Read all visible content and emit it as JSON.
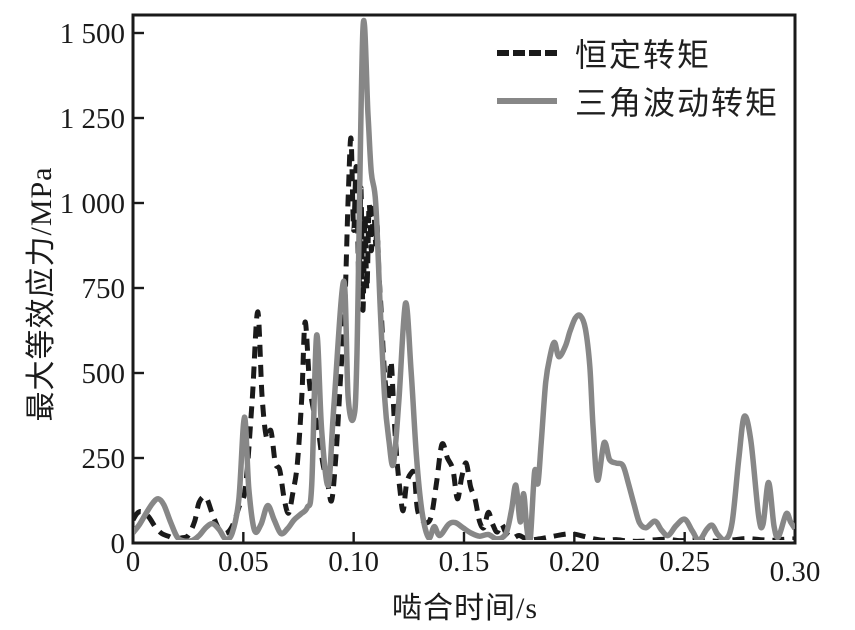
{
  "figure": {
    "background": "#ffffff",
    "frame_color": "#1a1a1a"
  },
  "axes": {
    "x_title": "啮合时间/s",
    "y_title": "最大等效应力/MPa"
  },
  "legend": {
    "items": [
      {
        "sample": "dashed-black-line",
        "label": "恒定转矩"
      },
      {
        "sample": "solid-gray-line",
        "label": "三角波动转矩"
      }
    ]
  },
  "chart_data": {
    "type": "line",
    "title": "",
    "xlabel": "啮合时间/s",
    "ylabel": "最大等效应力/MPa",
    "xlim": [
      0,
      0.3
    ],
    "ylim": [
      0,
      1500
    ],
    "grid": false,
    "legend_position": "top-right-inside",
    "x_ticks": {
      "values": [
        0,
        0.05,
        0.1,
        0.15,
        0.2,
        0.25,
        0.3
      ],
      "labels": [
        "0",
        "0.05",
        "0.10",
        "0.15",
        "0.20",
        "0.25",
        "0.30"
      ]
    },
    "y_ticks": {
      "values": [
        0,
        250,
        500,
        750,
        1000,
        1250,
        1500
      ],
      "labels": [
        "0",
        "250",
        "500",
        "750",
        "1 000",
        "1 250",
        "1 500"
      ]
    },
    "series": [
      {
        "name": "恒定转矩",
        "line_style": "dashed",
        "color": "#1a1a1a",
        "points": [
          [
            0,
            68
          ],
          [
            0.002,
            88
          ],
          [
            0.004,
            92
          ],
          [
            0.007,
            78
          ],
          [
            0.01,
            48
          ],
          [
            0.013,
            28
          ],
          [
            0.016,
            20
          ],
          [
            0.019,
            12
          ],
          [
            0.022,
            15
          ],
          [
            0.025,
            22
          ],
          [
            0.028,
            65
          ],
          [
            0.03,
            120
          ],
          [
            0.033,
            135
          ],
          [
            0.036,
            85
          ],
          [
            0.039,
            40
          ],
          [
            0.042,
            28
          ],
          [
            0.045,
            50
          ],
          [
            0.048,
            105
          ],
          [
            0.051,
            165
          ],
          [
            0.054,
            420
          ],
          [
            0.0565,
            680
          ],
          [
            0.0585,
            430
          ],
          [
            0.0605,
            310
          ],
          [
            0.0625,
            330
          ],
          [
            0.0645,
            235
          ],
          [
            0.0665,
            215
          ],
          [
            0.0685,
            130
          ],
          [
            0.0705,
            88
          ],
          [
            0.0725,
            150
          ],
          [
            0.0745,
            235
          ],
          [
            0.0765,
            430
          ],
          [
            0.078,
            650
          ],
          [
            0.08,
            470
          ],
          [
            0.082,
            385
          ],
          [
            0.084,
            330
          ],
          [
            0.086,
            235
          ],
          [
            0.088,
            185
          ],
          [
            0.09,
            125
          ],
          [
            0.092,
            260
          ],
          [
            0.094,
            480
          ],
          [
            0.096,
            700
          ],
          [
            0.0975,
            1010
          ],
          [
            0.0988,
            1190
          ],
          [
            0.1,
            920
          ],
          [
            0.1012,
            1105
          ],
          [
            0.1024,
            760
          ],
          [
            0.1033,
            1045
          ],
          [
            0.1042,
            685
          ],
          [
            0.1051,
            965
          ],
          [
            0.106,
            745
          ],
          [
            0.107,
            995
          ],
          [
            0.108,
            860
          ],
          [
            0.109,
            985
          ],
          [
            0.11,
            880
          ],
          [
            0.1106,
            935
          ],
          [
            0.1115,
            790
          ],
          [
            0.1124,
            690
          ],
          [
            0.1133,
            575
          ],
          [
            0.1142,
            480
          ],
          [
            0.1156,
            425
          ],
          [
            0.1169,
            535
          ],
          [
            0.1183,
            375
          ],
          [
            0.1196,
            245
          ],
          [
            0.121,
            155
          ],
          [
            0.1224,
            95
          ],
          [
            0.124,
            175
          ],
          [
            0.126,
            205
          ],
          [
            0.1275,
            200
          ],
          [
            0.129,
            95
          ],
          [
            0.132,
            62
          ],
          [
            0.135,
            75
          ],
          [
            0.1375,
            175
          ],
          [
            0.14,
            290
          ],
          [
            0.1425,
            250
          ],
          [
            0.145,
            215
          ],
          [
            0.147,
            130
          ],
          [
            0.149,
            195
          ],
          [
            0.151,
            235
          ],
          [
            0.153,
            165
          ],
          [
            0.155,
            130
          ],
          [
            0.157,
            65
          ],
          [
            0.159,
            45
          ],
          [
            0.161,
            90
          ],
          [
            0.163,
            55
          ],
          [
            0.165,
            32
          ],
          [
            0.167,
            55
          ],
          [
            0.169,
            30
          ],
          [
            0.172,
            15
          ],
          [
            0.175,
            22
          ],
          [
            0.179,
            10
          ],
          [
            0.184,
            12
          ],
          [
            0.189,
            18
          ],
          [
            0.194,
            24
          ],
          [
            0.199,
            27
          ],
          [
            0.204,
            20
          ],
          [
            0.209,
            12
          ],
          [
            0.214,
            8
          ],
          [
            0.219,
            10
          ],
          [
            0.224,
            6
          ],
          [
            0.23,
            5
          ],
          [
            0.236,
            9
          ],
          [
            0.242,
            11
          ],
          [
            0.248,
            7
          ],
          [
            0.254,
            9
          ],
          [
            0.26,
            7
          ],
          [
            0.266,
            5
          ],
          [
            0.272,
            9
          ],
          [
            0.278,
            13
          ],
          [
            0.284,
            10
          ],
          [
            0.29,
            8
          ],
          [
            0.295,
            11
          ],
          [
            0.3,
            12
          ]
        ]
      },
      {
        "name": "三角波动转矩",
        "line_style": "solid",
        "color": "#878787",
        "points": [
          [
            0,
            30
          ],
          [
            0.003,
            55
          ],
          [
            0.006,
            88
          ],
          [
            0.009,
            118
          ],
          [
            0.0115,
            130
          ],
          [
            0.014,
            112
          ],
          [
            0.017,
            62
          ],
          [
            0.02,
            18
          ],
          [
            0.023,
            6
          ],
          [
            0.027,
            8
          ],
          [
            0.03,
            22
          ],
          [
            0.033,
            45
          ],
          [
            0.036,
            57
          ],
          [
            0.039,
            40
          ],
          [
            0.042,
            12
          ],
          [
            0.045,
            30
          ],
          [
            0.048,
            130
          ],
          [
            0.0505,
            370
          ],
          [
            0.0525,
            160
          ],
          [
            0.055,
            38
          ],
          [
            0.058,
            55
          ],
          [
            0.061,
            110
          ],
          [
            0.064,
            68
          ],
          [
            0.067,
            28
          ],
          [
            0.07,
            42
          ],
          [
            0.073,
            68
          ],
          [
            0.076,
            85
          ],
          [
            0.079,
            105
          ],
          [
            0.081,
            170
          ],
          [
            0.0832,
            610
          ],
          [
            0.0855,
            330
          ],
          [
            0.0885,
            170
          ],
          [
            0.091,
            400
          ],
          [
            0.0955,
            770
          ],
          [
            0.0975,
            430
          ],
          [
            0.1,
            370
          ],
          [
            0.1015,
            560
          ],
          [
            0.1042,
            1510
          ],
          [
            0.1065,
            1260
          ],
          [
            0.108,
            1090
          ],
          [
            0.11,
            1000
          ],
          [
            0.112,
            700
          ],
          [
            0.114,
            430
          ],
          [
            0.116,
            300
          ],
          [
            0.118,
            232
          ],
          [
            0.1205,
            420
          ],
          [
            0.1235,
            705
          ],
          [
            0.126,
            510
          ],
          [
            0.1285,
            250
          ],
          [
            0.131,
            90
          ],
          [
            0.134,
            15
          ],
          [
            0.1365,
            48
          ],
          [
            0.139,
            22
          ],
          [
            0.143,
            55
          ],
          [
            0.146,
            60
          ],
          [
            0.1495,
            45
          ],
          [
            0.153,
            30
          ],
          [
            0.157,
            20
          ],
          [
            0.161,
            25
          ],
          [
            0.165,
            12
          ],
          [
            0.169,
            28
          ],
          [
            0.1715,
            95
          ],
          [
            0.1735,
            170
          ],
          [
            0.1755,
            62
          ],
          [
            0.177,
            145
          ],
          [
            0.1785,
            42
          ],
          [
            0.18,
            10
          ],
          [
            0.182,
            210
          ],
          [
            0.1835,
            175
          ],
          [
            0.185,
            295
          ],
          [
            0.187,
            470
          ],
          [
            0.189,
            550
          ],
          [
            0.191,
            590
          ],
          [
            0.193,
            548
          ],
          [
            0.196,
            580
          ],
          [
            0.198,
            622
          ],
          [
            0.2005,
            662
          ],
          [
            0.2028,
            668
          ],
          [
            0.205,
            630
          ],
          [
            0.207,
            520
          ],
          [
            0.2085,
            340
          ],
          [
            0.2105,
            185
          ],
          [
            0.2135,
            295
          ],
          [
            0.216,
            245
          ],
          [
            0.219,
            235
          ],
          [
            0.222,
            228
          ],
          [
            0.2245,
            175
          ],
          [
            0.227,
            115
          ],
          [
            0.2295,
            60
          ],
          [
            0.2325,
            45
          ],
          [
            0.2365,
            64
          ],
          [
            0.2395,
            38
          ],
          [
            0.2425,
            22
          ],
          [
            0.246,
            50
          ],
          [
            0.25,
            70
          ],
          [
            0.2535,
            35
          ],
          [
            0.2565,
            8
          ],
          [
            0.26,
            40
          ],
          [
            0.2625,
            52
          ],
          [
            0.265,
            25
          ],
          [
            0.2685,
            10
          ],
          [
            0.2715,
            60
          ],
          [
            0.2745,
            245
          ],
          [
            0.277,
            372
          ],
          [
            0.28,
            300
          ],
          [
            0.2835,
            80
          ],
          [
            0.2855,
            55
          ],
          [
            0.288,
            178
          ],
          [
            0.2905,
            50
          ],
          [
            0.2925,
            18
          ],
          [
            0.296,
            86
          ],
          [
            0.298,
            62
          ],
          [
            0.3,
            42
          ]
        ]
      }
    ]
  }
}
